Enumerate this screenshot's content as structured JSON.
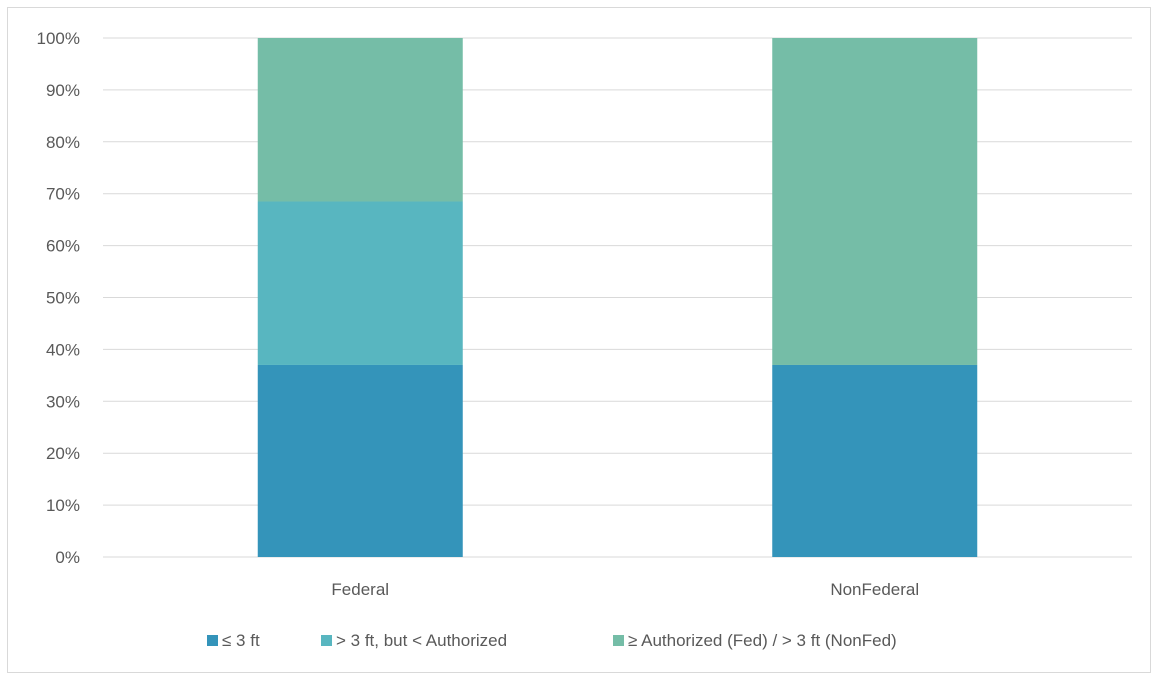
{
  "chart_data": {
    "type": "bar",
    "stacked": true,
    "title": "",
    "xlabel": "",
    "ylabel": "",
    "categories": [
      "Federal",
      "NonFederal"
    ],
    "series": [
      {
        "name": "≤ 3 ft",
        "values": [
          37,
          37
        ],
        "color": "#3494BA"
      },
      {
        "name": "> 3 ft, but < Authorized",
        "values": [
          31.5,
          0
        ],
        "color": "#58B6C0"
      },
      {
        "name": "≥ Authorized (Fed) / > 3 ft (NonFed)",
        "values": [
          31.5,
          63
        ],
        "color": "#75BDA7"
      }
    ],
    "ylim": [
      0,
      100
    ],
    "yticks": [
      "0%",
      "10%",
      "20%",
      "30%",
      "40%",
      "50%",
      "60%",
      "70%",
      "80%",
      "90%",
      "100%"
    ],
    "grid": true,
    "legend_position": "bottom"
  },
  "colors": {
    "gridline": "#d9d9d9",
    "text": "#595959"
  }
}
